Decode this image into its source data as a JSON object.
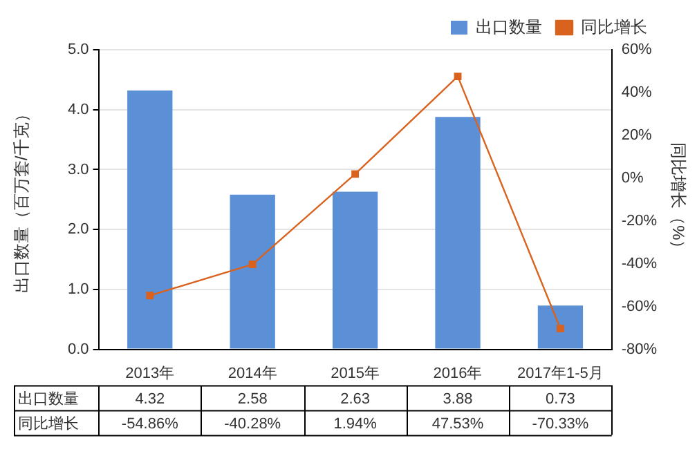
{
  "chart_data": {
    "type": "bar",
    "categories": [
      "2013年",
      "2014年",
      "2015年",
      "2016年",
      "2017年1-5月"
    ],
    "series": [
      {
        "name": "出口数量",
        "color": "#5b8fd6",
        "values": [
          4.32,
          2.58,
          2.63,
          3.88,
          0.73
        ],
        "value_labels": [
          "4.32",
          "2.58",
          "2.63",
          "3.88",
          "0.73"
        ]
      },
      {
        "name": "同比增长",
        "type": "line",
        "axis": "y2",
        "color": "#d9621e",
        "values": [
          -54.86,
          -40.28,
          1.94,
          47.53,
          -70.33
        ],
        "value_labels": [
          "-54.86%",
          "-40.28%",
          "1.94%",
          "47.53%",
          "-70.33%"
        ]
      }
    ],
    "ylabel": "出口数量（百万套/千克）",
    "y2label": "同比增长（%）",
    "ylim": [
      0,
      5
    ],
    "yticks": [
      {
        "value": 0,
        "label": "0.0"
      },
      {
        "value": 1,
        "label": "1.0"
      },
      {
        "value": 2,
        "label": "2.0"
      },
      {
        "value": 3,
        "label": "3.0"
      },
      {
        "value": 4,
        "label": "4.0"
      },
      {
        "value": 5,
        "label": "5.0"
      }
    ],
    "y2lim": [
      -80,
      60
    ],
    "y2ticks": [
      {
        "value": -80,
        "label": "-80%"
      },
      {
        "value": -60,
        "label": "-60%"
      },
      {
        "value": -40,
        "label": "-40%"
      },
      {
        "value": -20,
        "label": "-20%"
      },
      {
        "value": 0,
        "label": "0%"
      },
      {
        "value": 20,
        "label": "20%"
      },
      {
        "value": 40,
        "label": "40%"
      },
      {
        "value": 60,
        "label": "60%"
      }
    ],
    "grid": "y",
    "legend": "top right",
    "marker": "square",
    "line_style": "solid"
  }
}
